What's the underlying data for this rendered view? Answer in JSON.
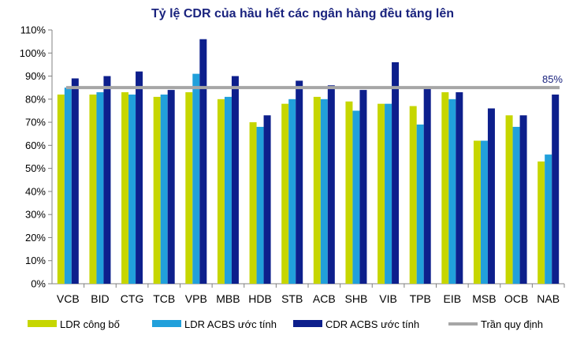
{
  "chart_data": {
    "type": "bar",
    "title": "Tỷ lệ CDR của hầu hết các ngân hàng đều tăng lên",
    "categories": [
      "VCB",
      "BID",
      "CTG",
      "TCB",
      "VPB",
      "MBB",
      "HDB",
      "STB",
      "ACB",
      "SHB",
      "VIB",
      "TPB",
      "EIB",
      "MSB",
      "OCB",
      "NAB"
    ],
    "series": [
      {
        "name": "LDR công bố",
        "color": "#c6d600",
        "values": [
          82,
          82,
          83,
          81,
          83,
          80,
          70,
          78,
          81,
          79,
          78,
          77,
          83,
          62,
          73,
          53
        ]
      },
      {
        "name": "LDR ACBS ước tính",
        "color": "#21a0db",
        "values": [
          85,
          83,
          82,
          82,
          91,
          81,
          68,
          80,
          80,
          75,
          78,
          69,
          80,
          62,
          68,
          56
        ]
      },
      {
        "name": "CDR ACBS ước tính",
        "color": "#0d1f8c",
        "values": [
          89,
          90,
          92,
          84,
          106,
          90,
          73,
          88,
          86,
          84,
          96,
          85,
          83,
          76,
          73,
          82
        ]
      }
    ],
    "reference_line": {
      "name": "Trần quy định",
      "value": 85,
      "label": "85%",
      "color": "#a6a6a6"
    },
    "ylim": [
      0,
      110
    ],
    "y_ticks": [
      "0%",
      "10%",
      "20%",
      "30%",
      "40%",
      "50%",
      "60%",
      "70%",
      "80%",
      "90%",
      "100%",
      "110%"
    ],
    "grid": false,
    "legend_position": "bottom"
  }
}
